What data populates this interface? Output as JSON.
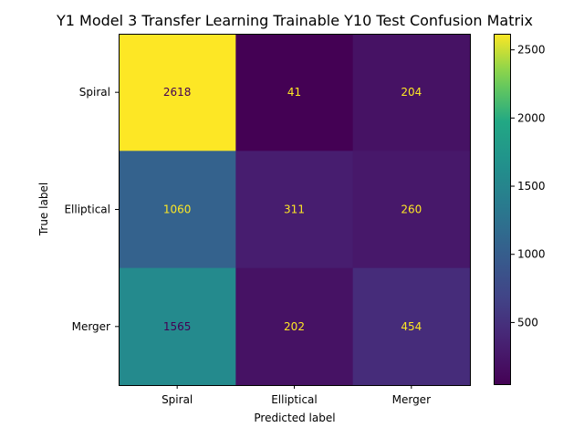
{
  "chart_data": {
    "type": "heatmap",
    "title": "Y1 Model 3 Transfer Learning Trainable Y10 Test Confusion Matrix",
    "xlabel": "Predicted label",
    "ylabel": "True label",
    "x_categories": [
      "Spiral",
      "Elliptical",
      "Merger"
    ],
    "y_categories": [
      "Spiral",
      "Elliptical",
      "Merger"
    ],
    "values": [
      [
        2618,
        41,
        204
      ],
      [
        1060,
        311,
        260
      ],
      [
        1565,
        202,
        454
      ]
    ],
    "colormap": "viridis",
    "colorbar": {
      "range": [
        41,
        2618
      ],
      "ticks": [
        500,
        1000,
        1500,
        2000,
        2500
      ],
      "tick_labels": [
        "500",
        "1000",
        "1500",
        "2000",
        "2500"
      ]
    },
    "text_colors": {
      "on_dark": "#fde725",
      "on_light": "#440154"
    }
  }
}
